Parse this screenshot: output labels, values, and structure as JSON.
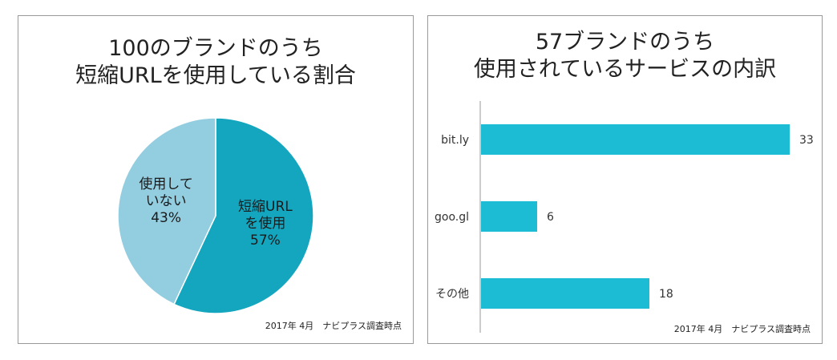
{
  "colors": {
    "main": "#14a6bf",
    "light": "#93cde0",
    "bar": "#1cbcd5",
    "axis": "#9a9a9a"
  },
  "chart_data": [
    {
      "type": "pie",
      "title_line1": "100のブランドのうち",
      "title_line2": "短縮URLを使用している割合",
      "note": "2017年 4月　ナビプラス調査時点",
      "slices": [
        {
          "label_line1": "短縮URL",
          "label_line2": "を使用",
          "value": 57,
          "value_text": "57%",
          "color": "#14a6bf"
        },
        {
          "label_line1": "使用して",
          "label_line2": "いない",
          "value": 43,
          "value_text": "43%",
          "color": "#93cde0"
        }
      ]
    },
    {
      "type": "bar",
      "orientation": "horizontal",
      "title_line1": "57ブランドのうち",
      "title_line2": "使用されているサービスの内訳",
      "note": "2017年 4月　ナビプラス調査時点",
      "categories": [
        "bit.ly",
        "goo.gl",
        "その他"
      ],
      "values": [
        33,
        6,
        18
      ],
      "xlim": [
        0,
        33
      ],
      "grid": false
    }
  ]
}
